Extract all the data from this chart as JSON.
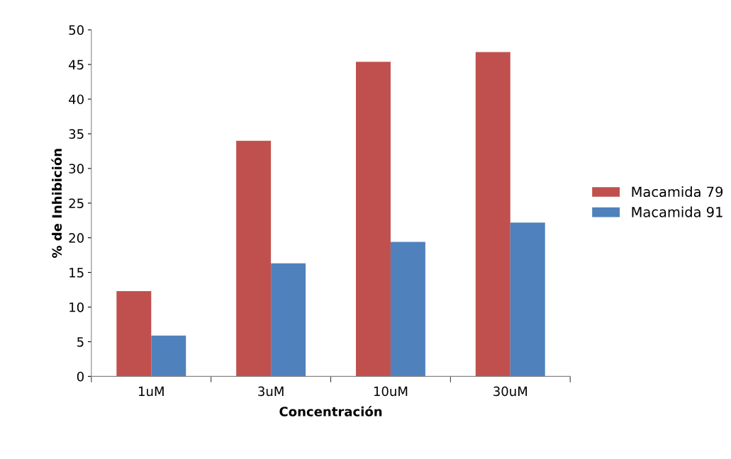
{
  "chart_data": {
    "type": "bar",
    "xlabel": "Concentración",
    "ylabel": "% de Inhibición",
    "categories": [
      "1uM",
      "3uM",
      "10uM",
      "30uM"
    ],
    "series": [
      {
        "name": "Macamida 79",
        "color": "#c0504d",
        "values": [
          12.3,
          34.0,
          45.4,
          46.8
        ]
      },
      {
        "name": "Macamida 91",
        "color": "#4f81bd",
        "values": [
          5.9,
          16.3,
          19.4,
          22.2
        ]
      }
    ],
    "ylim": [
      0,
      50
    ],
    "yticks": [
      0,
      5,
      10,
      15,
      20,
      25,
      30,
      35,
      40,
      45,
      50
    ],
    "grid": false,
    "legend": "right"
  }
}
